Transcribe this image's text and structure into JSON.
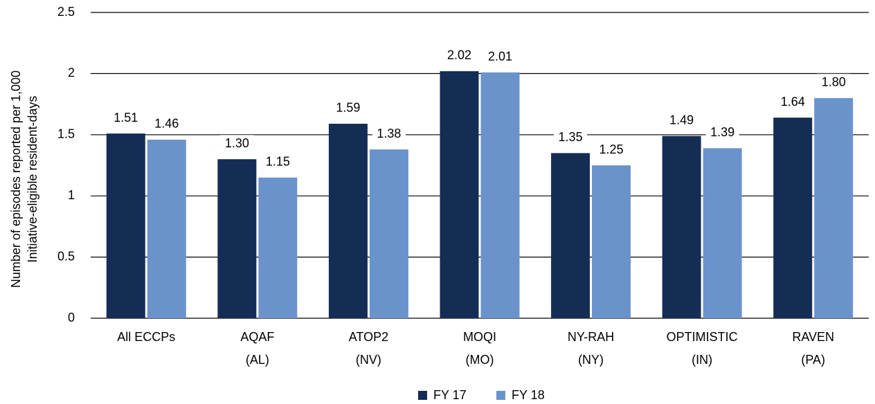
{
  "chart_data": {
    "type": "bar",
    "y_label": [
      "Number of episodes reported per 1,000",
      "Initiative-eligible resident-days"
    ],
    "categories": [
      [
        "All ECCPs"
      ],
      [
        "AQAF",
        "(AL)"
      ],
      [
        "ATOP2",
        "(NV)"
      ],
      [
        "MOQI",
        "(MO)"
      ],
      [
        "NY-RAH",
        "(NY)"
      ],
      [
        "OPTIMISTIC",
        "(IN)"
      ],
      [
        "RAVEN",
        "(PA)"
      ]
    ],
    "series": [
      {
        "name": "FY 17",
        "color": "#142d55",
        "values": [
          1.51,
          1.3,
          1.59,
          2.02,
          1.35,
          1.49,
          1.64
        ],
        "value_labels": [
          "1.51",
          "1.30",
          "1.59",
          "2.02",
          "1.35",
          "1.49",
          "1.64"
        ]
      },
      {
        "name": "FY 18",
        "color": "#6a93cc",
        "values": [
          1.46,
          1.15,
          1.38,
          2.01,
          1.25,
          1.39,
          1.8
        ],
        "value_labels": [
          "1.46",
          "1.15",
          "1.38",
          "2.01",
          "1.25",
          "1.39",
          "1.80"
        ]
      }
    ],
    "ylim": [
      0,
      2.5
    ],
    "yticks": [
      0,
      0.5,
      1,
      1.5,
      2,
      2.5
    ],
    "grid": true,
    "legend": "bottom"
  }
}
